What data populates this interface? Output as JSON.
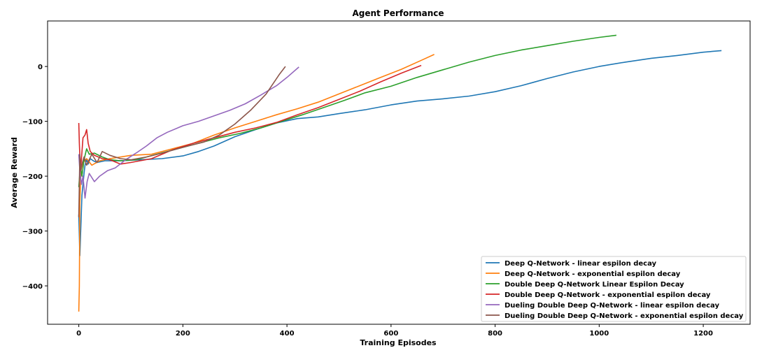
{
  "chart_data": {
    "type": "line",
    "title": "Agent Performance",
    "xlabel": "Training Episodes",
    "ylabel": "Average Reward",
    "xlim": [
      -60,
      1290
    ],
    "ylim": [
      -470,
      83
    ],
    "xticks": [
      0,
      200,
      400,
      600,
      800,
      1000,
      1200
    ],
    "yticks": [
      -400,
      -300,
      -200,
      -100,
      0
    ],
    "xtick_labels": [
      "0",
      "200",
      "400",
      "600",
      "800",
      "1000",
      "1200"
    ],
    "ytick_labels": [
      "−400",
      "−300",
      "−200",
      "−100",
      "0"
    ],
    "grid": false,
    "legend_position": "lower-right",
    "series": [
      {
        "name": "Deep Q-Network - linear espilon decay",
        "color": "#1f77b4",
        "points": [
          [
            0,
            -270
          ],
          [
            2,
            -345
          ],
          [
            4,
            -290
          ],
          [
            6,
            -235
          ],
          [
            8,
            -215
          ],
          [
            10,
            -195
          ],
          [
            12,
            -180
          ],
          [
            15,
            -170
          ],
          [
            18,
            -178
          ],
          [
            22,
            -168
          ],
          [
            28,
            -172
          ],
          [
            35,
            -175
          ],
          [
            50,
            -172
          ],
          [
            80,
            -172
          ],
          [
            120,
            -170
          ],
          [
            160,
            -168
          ],
          [
            200,
            -163
          ],
          [
            230,
            -155
          ],
          [
            260,
            -145
          ],
          [
            300,
            -128
          ],
          [
            340,
            -115
          ],
          [
            380,
            -103
          ],
          [
            420,
            -95
          ],
          [
            460,
            -92
          ],
          [
            500,
            -86
          ],
          [
            550,
            -79
          ],
          [
            600,
            -70
          ],
          [
            650,
            -63
          ],
          [
            700,
            -59
          ],
          [
            750,
            -54
          ],
          [
            800,
            -46
          ],
          [
            850,
            -35
          ],
          [
            900,
            -22
          ],
          [
            950,
            -10
          ],
          [
            1000,
            0
          ],
          [
            1050,
            8
          ],
          [
            1100,
            15
          ],
          [
            1150,
            20
          ],
          [
            1200,
            26
          ],
          [
            1235,
            29
          ]
        ]
      },
      {
        "name": "Deep Q-Network - exponential espilon decay",
        "color": "#ff7f0e",
        "points": [
          [
            0,
            -447
          ],
          [
            1,
            -400
          ],
          [
            2,
            -250
          ],
          [
            4,
            -190
          ],
          [
            8,
            -175
          ],
          [
            15,
            -168
          ],
          [
            25,
            -180
          ],
          [
            40,
            -172
          ],
          [
            60,
            -168
          ],
          [
            100,
            -162
          ],
          [
            140,
            -160
          ],
          [
            180,
            -150
          ],
          [
            220,
            -140
          ],
          [
            260,
            -125
          ],
          [
            300,
            -112
          ],
          [
            340,
            -100
          ],
          [
            380,
            -88
          ],
          [
            420,
            -77
          ],
          [
            460,
            -65
          ],
          [
            500,
            -50
          ],
          [
            540,
            -35
          ],
          [
            580,
            -20
          ],
          [
            620,
            -5
          ],
          [
            660,
            12
          ],
          [
            683,
            22
          ]
        ]
      },
      {
        "name": "Double Deep Q-Network Linear Espilon Decay",
        "color": "#2ca02c",
        "points": [
          [
            0,
            -220
          ],
          [
            3,
            -180
          ],
          [
            6,
            -200
          ],
          [
            10,
            -170
          ],
          [
            15,
            -150
          ],
          [
            20,
            -160
          ],
          [
            30,
            -158
          ],
          [
            45,
            -165
          ],
          [
            60,
            -170
          ],
          [
            80,
            -172
          ],
          [
            110,
            -170
          ],
          [
            150,
            -160
          ],
          [
            190,
            -150
          ],
          [
            230,
            -140
          ],
          [
            270,
            -130
          ],
          [
            310,
            -122
          ],
          [
            350,
            -112
          ],
          [
            390,
            -100
          ],
          [
            430,
            -88
          ],
          [
            470,
            -75
          ],
          [
            510,
            -62
          ],
          [
            550,
            -48
          ],
          [
            600,
            -36
          ],
          [
            650,
            -20
          ],
          [
            700,
            -6
          ],
          [
            750,
            8
          ],
          [
            800,
            20
          ],
          [
            850,
            30
          ],
          [
            900,
            38
          ],
          [
            950,
            46
          ],
          [
            1000,
            53
          ],
          [
            1033,
            57
          ]
        ]
      },
      {
        "name": "Double Deep Q-Network - exponential espilon decay",
        "color": "#d62728",
        "points": [
          [
            0,
            -103
          ],
          [
            1,
            -140
          ],
          [
            3,
            -190
          ],
          [
            5,
            -170
          ],
          [
            8,
            -130
          ],
          [
            12,
            -125
          ],
          [
            15,
            -115
          ],
          [
            18,
            -140
          ],
          [
            22,
            -155
          ],
          [
            30,
            -162
          ],
          [
            45,
            -168
          ],
          [
            60,
            -170
          ],
          [
            80,
            -178
          ],
          [
            100,
            -175
          ],
          [
            140,
            -168
          ],
          [
            180,
            -152
          ],
          [
            220,
            -140
          ],
          [
            260,
            -130
          ],
          [
            300,
            -120
          ],
          [
            340,
            -112
          ],
          [
            380,
            -102
          ],
          [
            420,
            -88
          ],
          [
            460,
            -75
          ],
          [
            500,
            -60
          ],
          [
            540,
            -45
          ],
          [
            580,
            -28
          ],
          [
            620,
            -12
          ],
          [
            658,
            2
          ]
        ]
      },
      {
        "name": "Dueling Double Deep Q-Network - linear espilon decay",
        "color": "#9467bd",
        "points": [
          [
            0,
            -160
          ],
          [
            2,
            -190
          ],
          [
            5,
            -215
          ],
          [
            8,
            -200
          ],
          [
            12,
            -240
          ],
          [
            16,
            -210
          ],
          [
            20,
            -195
          ],
          [
            30,
            -210
          ],
          [
            40,
            -200
          ],
          [
            55,
            -190
          ],
          [
            70,
            -185
          ],
          [
            90,
            -170
          ],
          [
            110,
            -158
          ],
          [
            130,
            -145
          ],
          [
            150,
            -130
          ],
          [
            170,
            -120
          ],
          [
            200,
            -108
          ],
          [
            230,
            -100
          ],
          [
            260,
            -90
          ],
          [
            290,
            -80
          ],
          [
            320,
            -68
          ],
          [
            350,
            -52
          ],
          [
            380,
            -35
          ],
          [
            400,
            -20
          ],
          [
            423,
            -1
          ]
        ]
      },
      {
        "name": "Dueling Double Deep Q-Network - exponential espilon decay",
        "color": "#8c564b",
        "points": [
          [
            0,
            -275
          ],
          [
            2,
            -160
          ],
          [
            4,
            -190
          ],
          [
            7,
            -175
          ],
          [
            10,
            -165
          ],
          [
            15,
            -180
          ],
          [
            20,
            -170
          ],
          [
            25,
            -160
          ],
          [
            35,
            -175
          ],
          [
            45,
            -155
          ],
          [
            60,
            -162
          ],
          [
            80,
            -168
          ],
          [
            100,
            -170
          ],
          [
            130,
            -165
          ],
          [
            160,
            -158
          ],
          [
            190,
            -150
          ],
          [
            210,
            -145
          ],
          [
            240,
            -138
          ],
          [
            270,
            -125
          ],
          [
            300,
            -105
          ],
          [
            330,
            -80
          ],
          [
            360,
            -50
          ],
          [
            385,
            -15
          ],
          [
            397,
            0
          ]
        ]
      }
    ]
  }
}
